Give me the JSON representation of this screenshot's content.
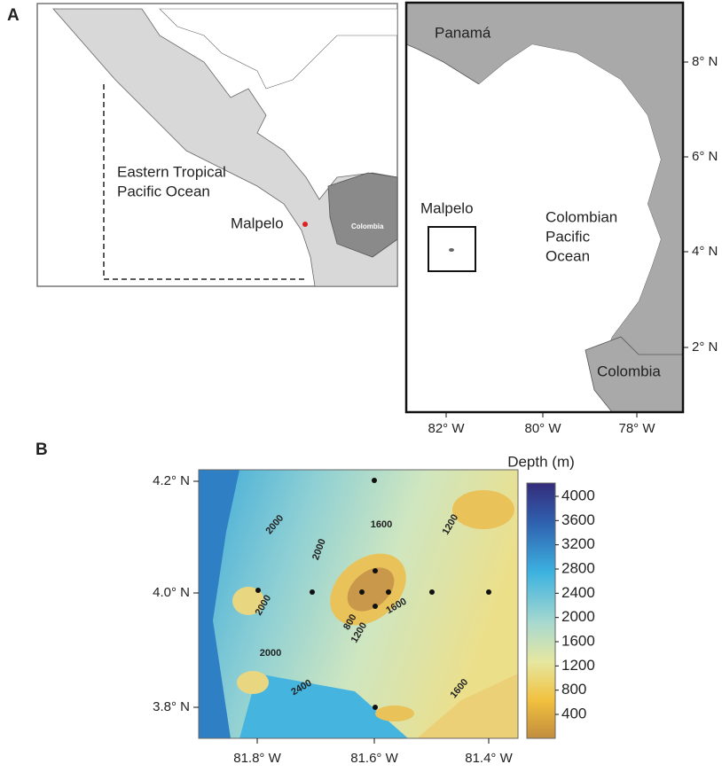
{
  "panel_a": {
    "label": "A",
    "overview": {
      "ocean": [
        "Eastern Tropical",
        "Pacific Ocean"
      ],
      "site": "Malpelo",
      "country": "Colombia"
    },
    "inset": {
      "north": "Panamá",
      "site": "Malpelo",
      "ocean": [
        "Colombian",
        "Pacific",
        "Ocean"
      ],
      "south": "Colombia",
      "yticks": [
        "8° N",
        "6° N",
        "4° N",
        "2° N"
      ],
      "xticks": [
        "82° W",
        "80° W",
        "78° W"
      ]
    }
  },
  "panel_b": {
    "label": "B",
    "yticks": [
      "4.2° N",
      "4.0° N",
      "3.8° N"
    ],
    "xticks": [
      "81.8° W",
      "81.6° W",
      "81.4° W"
    ],
    "contour_labels": [
      2000,
      2000,
      2000,
      2000,
      2400,
      1600,
      1200,
      800,
      1200,
      1600,
      1600
    ],
    "colorbar": {
      "title": "Depth (m)",
      "ticks": [
        4000,
        3600,
        3200,
        2800,
        2400,
        2000,
        1600,
        1200,
        800,
        400
      ]
    }
  }
}
